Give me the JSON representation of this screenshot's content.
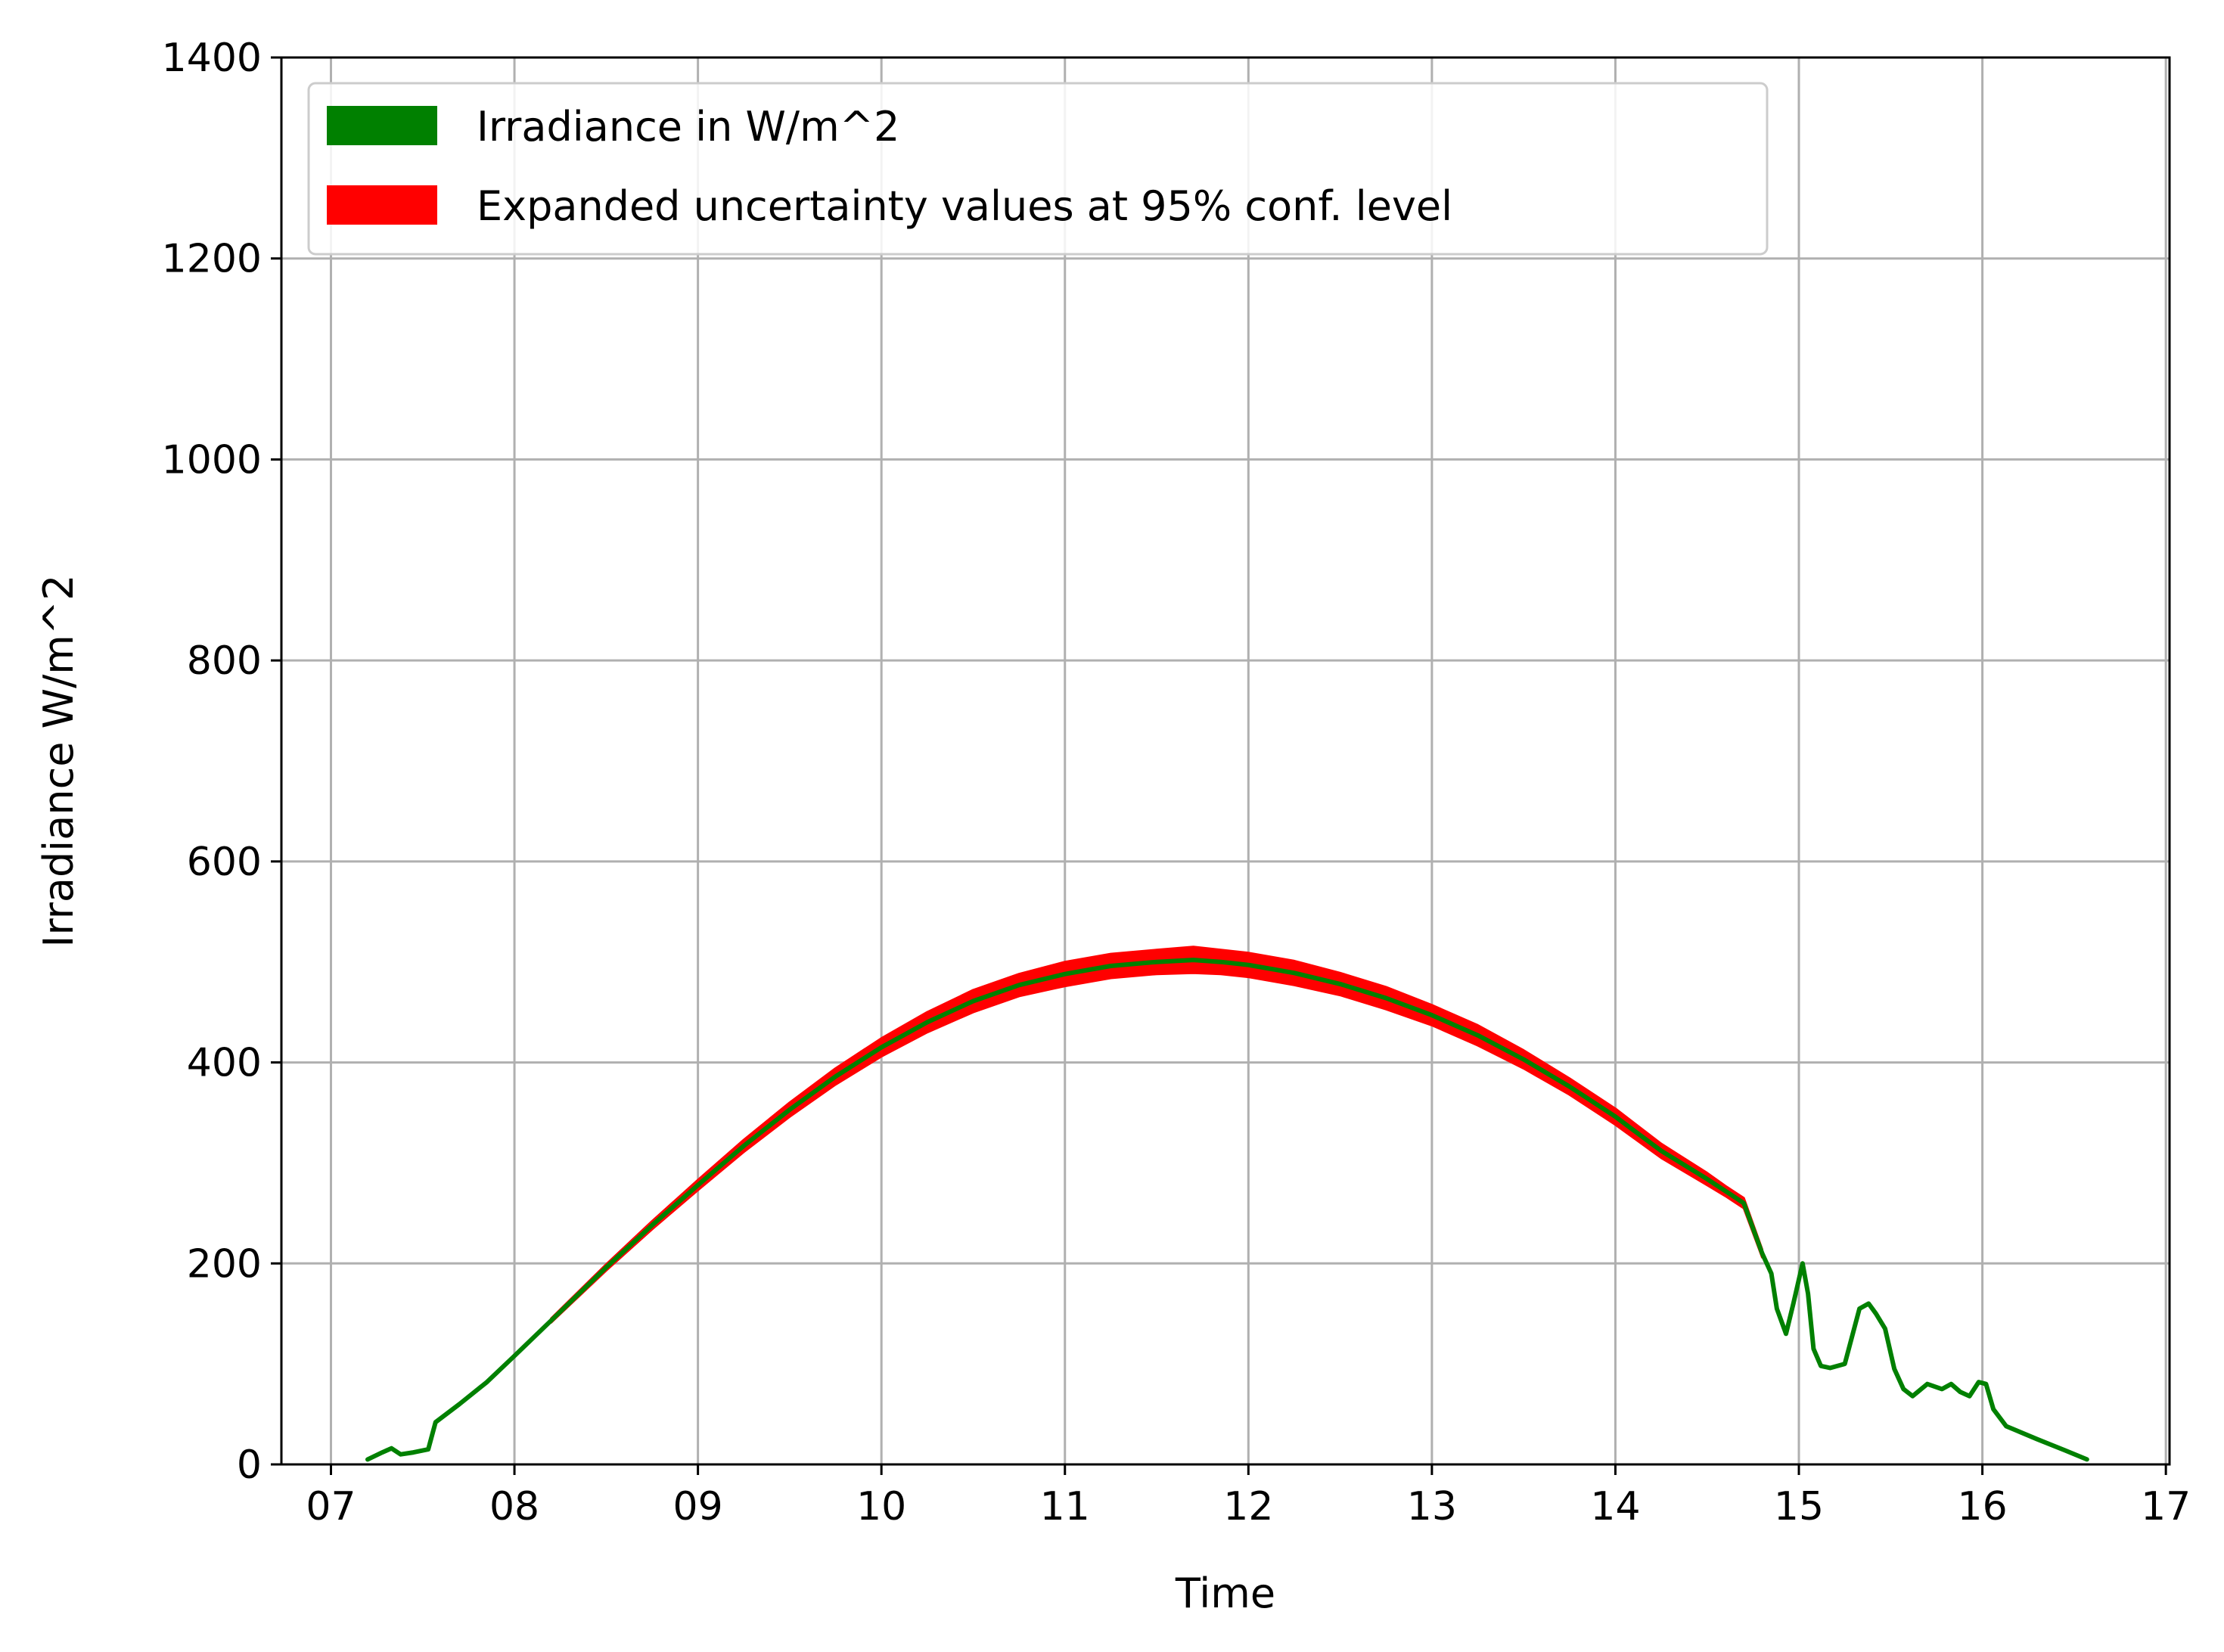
{
  "chart_data": {
    "type": "line",
    "title": "",
    "xlabel": "Time",
    "ylabel": "Irradiance W/m^2",
    "xlim": [
      6.73,
      17.02
    ],
    "ylim": [
      0,
      1400
    ],
    "x_ticks": [
      7,
      8,
      9,
      10,
      11,
      12,
      13,
      14,
      15,
      16,
      17
    ],
    "x_tick_labels": [
      "07",
      "08",
      "09",
      "10",
      "11",
      "12",
      "13",
      "14",
      "15",
      "16",
      "17"
    ],
    "y_ticks": [
      0,
      200,
      400,
      600,
      800,
      1000,
      1200,
      1400
    ],
    "y_tick_labels": [
      "0",
      "200",
      "400",
      "600",
      "800",
      "1000",
      "1200",
      "1400"
    ],
    "grid": true,
    "legend_position": "top-left",
    "series": [
      {
        "name": "Irradiance in W/m^2",
        "color": "#008000",
        "x": [
          7.2,
          7.28,
          7.33,
          7.38,
          7.45,
          7.53,
          7.57,
          7.7,
          7.85,
          8.0,
          8.25,
          8.5,
          8.75,
          9.0,
          9.25,
          9.5,
          9.75,
          10.0,
          10.25,
          10.5,
          10.75,
          11.0,
          11.25,
          11.5,
          11.7,
          11.85,
          12.0,
          12.25,
          12.5,
          12.75,
          13.0,
          13.25,
          13.5,
          13.75,
          14.0,
          14.25,
          14.5,
          14.6,
          14.7,
          14.8,
          14.85,
          14.88,
          14.93,
          14.97,
          15.02,
          15.05,
          15.08,
          15.12,
          15.17,
          15.25,
          15.33,
          15.38,
          15.42,
          15.47,
          15.52,
          15.57,
          15.62,
          15.7,
          15.78,
          15.83,
          15.88,
          15.93,
          15.98,
          16.02,
          16.06,
          16.13,
          16.3,
          16.45,
          16.57
        ],
        "values": [
          5,
          12,
          16,
          10,
          12,
          15,
          42,
          60,
          82,
          108,
          152,
          196,
          238,
          278,
          317,
          353,
          386,
          415,
          440,
          461,
          477,
          488,
          496,
          500,
          502,
          500,
          497,
          489,
          478,
          464,
          447,
          427,
          403,
          376,
          346,
          312,
          284,
          272,
          260,
          210,
          190,
          155,
          130,
          160,
          200,
          170,
          115,
          98,
          96,
          100,
          155,
          160,
          150,
          135,
          95,
          75,
          68,
          80,
          75,
          80,
          72,
          68,
          82,
          80,
          55,
          38,
          25,
          14,
          5
        ]
      },
      {
        "name": "Expanded uncertainty values at 95% conf. level",
        "color": "#ff0000",
        "type": "band",
        "x": [
          8.2,
          8.5,
          8.75,
          9.0,
          9.25,
          9.5,
          9.75,
          10.0,
          10.25,
          10.5,
          10.75,
          11.0,
          11.25,
          11.5,
          11.7,
          11.85,
          12.0,
          12.25,
          12.5,
          12.75,
          13.0,
          13.25,
          13.5,
          13.75,
          14.0,
          14.25,
          14.5,
          14.6,
          14.7,
          14.8
        ],
        "half_width": [
          2,
          3,
          4,
          5,
          6,
          7,
          8,
          9,
          10,
          11,
          11,
          12,
          12,
          12,
          13,
          12,
          12,
          12,
          11,
          11,
          10,
          10,
          9,
          8,
          8,
          7,
          6,
          5,
          5,
          4
        ]
      }
    ]
  }
}
